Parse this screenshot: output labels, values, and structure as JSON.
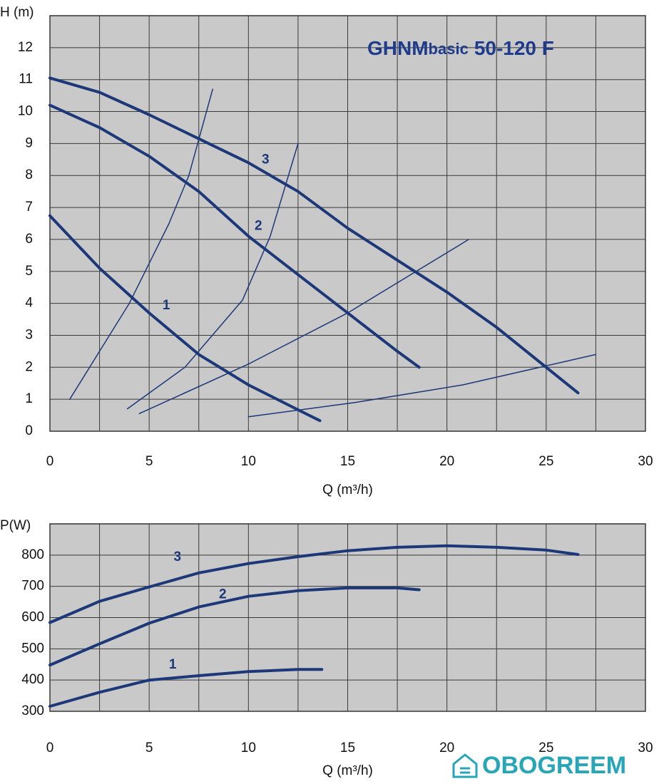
{
  "chart_data": [
    {
      "type": "line",
      "title": "GHNM",
      "title_small": "basic",
      "title_rest": "50-120 F",
      "ylabel": "H (m)",
      "xlabel": "Q (m³/h)",
      "xlim": [
        0,
        30
      ],
      "xticks": [
        0,
        5,
        10,
        15,
        20,
        25,
        30
      ],
      "xgrid": [
        0,
        2.5,
        5,
        7.5,
        10,
        12.5,
        15,
        17.5,
        20,
        22.5,
        25,
        27.5,
        30
      ],
      "ylim": [
        0,
        13
      ],
      "yticks": [
        0,
        1,
        2,
        3,
        4,
        5,
        6,
        7,
        8,
        9,
        10,
        11,
        12
      ],
      "grid": true,
      "background": "#c9c9c9",
      "series": [
        {
          "name": "1",
          "color": "#1d3878",
          "line_width": 4,
          "x": [
            0,
            2.5,
            5,
            7.5,
            10,
            12.5,
            13.6
          ],
          "values": [
            6.74,
            5.1,
            3.7,
            2.4,
            1.45,
            0.67,
            0.33
          ]
        },
        {
          "name": "2",
          "color": "#1d3878",
          "line_width": 4,
          "x": [
            0,
            2.5,
            5,
            7.5,
            10,
            12.5,
            15,
            17.5,
            18.6
          ],
          "values": [
            10.2,
            9.5,
            8.6,
            7.5,
            6.1,
            4.9,
            3.7,
            2.5,
            2.0
          ]
        },
        {
          "name": "3",
          "color": "#1d3878",
          "line_width": 4,
          "x": [
            0,
            2.5,
            5,
            7.5,
            10,
            12.5,
            15,
            20,
            22.5,
            25,
            26.6
          ],
          "values": [
            11.05,
            10.6,
            9.9,
            9.15,
            8.4,
            7.5,
            6.35,
            4.35,
            3.25,
            2.0,
            1.2
          ]
        },
        {
          "color": "#1d3878",
          "line_width": 1.5,
          "x": [
            1,
            4,
            6,
            7,
            8.2
          ],
          "values": [
            1.0,
            4.0,
            6.5,
            8.0,
            10.7
          ]
        },
        {
          "color": "#1d3878",
          "line_width": 1.5,
          "x": [
            3.9,
            6.8,
            9.7,
            11.1,
            12.5
          ],
          "values": [
            0.7,
            2.0,
            4.1,
            6.1,
            9.0
          ]
        },
        {
          "color": "#1d3878",
          "line_width": 1.5,
          "x": [
            4.5,
            10,
            15,
            21.1
          ],
          "values": [
            0.55,
            2.1,
            3.7,
            6.0
          ]
        },
        {
          "color": "#1d3878",
          "line_width": 1.5,
          "x": [
            10,
            15.4,
            20.8,
            27.5
          ],
          "values": [
            0.45,
            0.9,
            1.45,
            2.4
          ]
        }
      ]
    },
    {
      "type": "line",
      "ylabel": "P(W)",
      "xlabel": "Q (m³/h)",
      "xlim": [
        0,
        30
      ],
      "xticks": [
        0,
        5,
        10,
        15,
        20,
        25,
        30
      ],
      "xgrid": [
        0,
        2.5,
        5,
        7.5,
        10,
        12.5,
        15,
        17.5,
        20,
        22.5,
        25,
        27.5,
        30
      ],
      "ylim": [
        300,
        900
      ],
      "yticks": [
        300,
        400,
        500,
        600,
        700,
        800
      ],
      "grid": true,
      "background": "#c9c9c9",
      "watermark": "OBOGREEM",
      "series": [
        {
          "name": "1",
          "color": "#1d3878",
          "line_width": 4,
          "x": [
            0,
            2.5,
            5,
            7.5,
            10,
            12.5,
            13.7
          ],
          "values": [
            316,
            361,
            400,
            414,
            427,
            434,
            434
          ]
        },
        {
          "name": "2",
          "color": "#1d3878",
          "line_width": 4,
          "x": [
            0,
            2.5,
            5,
            7.5,
            10,
            12.5,
            15,
            17.5,
            18.6
          ],
          "values": [
            448,
            516,
            582,
            634,
            668,
            686,
            695,
            695,
            689
          ]
        },
        {
          "name": "3",
          "color": "#1d3878",
          "line_width": 4,
          "x": [
            0,
            2.5,
            5,
            7.5,
            10,
            12.5,
            15,
            17.5,
            20,
            22.5,
            25,
            26.6
          ],
          "values": [
            584,
            652,
            698,
            743,
            773,
            795,
            814,
            825,
            830,
            825,
            816,
            802
          ]
        }
      ]
    }
  ]
}
